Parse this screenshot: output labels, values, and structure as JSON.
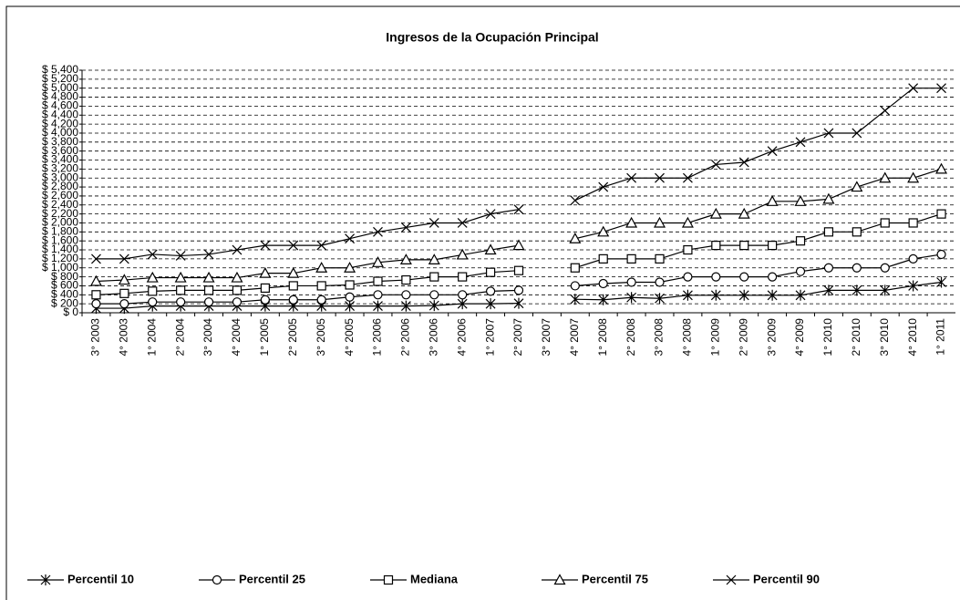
{
  "chart_data": {
    "type": "line",
    "title": "Ingresos de la Ocupación Principal",
    "categories": [
      "3° 2003",
      "4° 2003",
      "1° 2004",
      "2° 2004",
      "3° 2004",
      "4° 2004",
      "1° 2005",
      "2° 2005",
      "3° 2005",
      "4° 2005",
      "1° 2006",
      "2° 2006",
      "3° 2006",
      "4° 2006",
      "1° 2007",
      "2° 2007",
      "3° 2007",
      "4° 2007",
      "1° 2008",
      "2° 2008",
      "3° 2008",
      "4° 2008",
      "1° 2009",
      "2° 2009",
      "3° 2009",
      "4° 2009",
      "1° 2010",
      "2° 2010",
      "3° 2010",
      "4° 2010",
      "1° 2011"
    ],
    "series": [
      {
        "name": "Percentil 10",
        "color": "#000000",
        "marker": "star",
        "values": [
          100,
          100,
          150,
          150,
          150,
          150,
          150,
          150,
          150,
          150,
          150,
          150,
          160,
          200,
          200,
          210,
          null,
          300,
          290,
          340,
          320,
          390,
          390,
          390,
          390,
          390,
          500,
          500,
          500,
          600,
          680
        ]
      },
      {
        "name": "Percentil 25",
        "color": "#000000",
        "marker": "circle",
        "values": [
          200,
          200,
          240,
          240,
          240,
          240,
          290,
          290,
          290,
          350,
          400,
          400,
          400,
          400,
          480,
          500,
          null,
          600,
          650,
          680,
          680,
          800,
          800,
          800,
          800,
          920,
          1000,
          1000,
          1000,
          1200,
          1300
        ]
      },
      {
        "name": "Mediana",
        "color": "#000000",
        "marker": "square",
        "values": [
          400,
          430,
          480,
          500,
          500,
          500,
          550,
          600,
          600,
          620,
          700,
          730,
          800,
          800,
          900,
          940,
          null,
          1000,
          1200,
          1200,
          1200,
          1400,
          1500,
          1500,
          1500,
          1600,
          1800,
          1800,
          2000,
          2000,
          2200
        ]
      },
      {
        "name": "Percentil 75",
        "color": "#000000",
        "marker": "triangle",
        "values": [
          700,
          730,
          780,
          780,
          780,
          780,
          880,
          880,
          1000,
          1000,
          1120,
          1180,
          1180,
          1290,
          1400,
          1500,
          null,
          1650,
          1800,
          2000,
          2000,
          2000,
          2200,
          2200,
          2480,
          2480,
          2530,
          2800,
          3000,
          3000,
          3200
        ]
      },
      {
        "name": "Percentil 90",
        "color": "#000000",
        "marker": "x",
        "values": [
          1200,
          1200,
          1300,
          1270,
          1300,
          1400,
          1500,
          1500,
          1500,
          1650,
          1800,
          1900,
          2000,
          2000,
          2200,
          2300,
          null,
          2500,
          2800,
          3000,
          3000,
          3000,
          3300,
          3350,
          3600,
          3800,
          4000,
          4000,
          4500,
          5000,
          5000
        ]
      }
    ],
    "ylim": [
      0,
      5400
    ],
    "yticks": [
      {
        "value": 0,
        "label": "$ 0"
      },
      {
        "value": 200,
        "label": "$ 200"
      },
      {
        "value": 400,
        "label": "$ 400"
      },
      {
        "value": 600,
        "label": "$ 600"
      },
      {
        "value": 800,
        "label": "$ 800"
      },
      {
        "value": 1000,
        "label": "$ 1,000"
      },
      {
        "value": 1200,
        "label": "$ 1,200"
      },
      {
        "value": 1400,
        "label": "$ 1,400"
      },
      {
        "value": 1600,
        "label": "$ 1,600"
      },
      {
        "value": 1800,
        "label": "$ 1,800"
      },
      {
        "value": 2000,
        "label": "$ 2,000"
      },
      {
        "value": 2200,
        "label": "$ 2,200"
      },
      {
        "value": 2400,
        "label": "$ 2,400"
      },
      {
        "value": 2600,
        "label": "$ 2,600"
      },
      {
        "value": 2800,
        "label": "$ 2,800"
      },
      {
        "value": 3000,
        "label": "$ 3,000"
      },
      {
        "value": 3200,
        "label": "$ 3,200"
      },
      {
        "value": 3400,
        "label": "$ 3,400"
      },
      {
        "value": 3600,
        "label": "$ 3,600"
      },
      {
        "value": 3800,
        "label": "$ 3,800"
      },
      {
        "value": 4000,
        "label": "$ 4,000"
      },
      {
        "value": 4200,
        "label": "$ 4,200"
      },
      {
        "value": 4400,
        "label": "$ 4,400"
      },
      {
        "value": 4600,
        "label": "$ 4,600"
      },
      {
        "value": 4800,
        "label": "$ 4,800"
      },
      {
        "value": 5000,
        "label": "$ 5,000"
      },
      {
        "value": 5200,
        "label": "$ 5,200"
      },
      {
        "value": 5400,
        "label": "$ 5,400"
      }
    ],
    "grid": true,
    "legend": "bottom"
  }
}
